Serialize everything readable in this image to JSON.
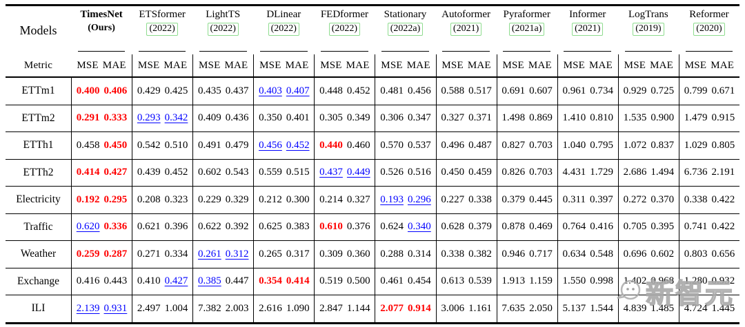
{
  "header": {
    "models_label": "Models",
    "metric_label": "Metric",
    "mse_label": "MSE",
    "mae_label": "MAE",
    "models": [
      {
        "name": "TimesNet",
        "year": "(Ours)",
        "ours": true
      },
      {
        "name": "ETSformer",
        "year": "(2022)",
        "ours": false
      },
      {
        "name": "LightTS",
        "year": "(2022)",
        "ours": false
      },
      {
        "name": "DLinear",
        "year": "(2022)",
        "ours": false
      },
      {
        "name": "FEDformer",
        "year": "(2022)",
        "ours": false
      },
      {
        "name": "Stationary",
        "year": "(2022a)",
        "ours": false
      },
      {
        "name": "Autoformer",
        "year": "(2021)",
        "ours": false
      },
      {
        "name": "Pyraformer",
        "year": "(2021a)",
        "ours": false
      },
      {
        "name": "Informer",
        "year": "(2021)",
        "ours": false
      },
      {
        "name": "LogTrans",
        "year": "(2019)",
        "ours": false
      },
      {
        "name": "Reformer",
        "year": "(2020)",
        "ours": false
      }
    ]
  },
  "styles": {
    "best_color": "#ff0000",
    "second_color": "#0000ff",
    "citation_box_color": "#8edc8e"
  },
  "legend_note": "best=red bold, second=blue underline",
  "table": {
    "rows": [
      {
        "label": "ETTm1",
        "cells": [
          [
            "0.400",
            "best"
          ],
          [
            "0.406",
            "best"
          ],
          [
            "0.429",
            ""
          ],
          [
            "0.425",
            ""
          ],
          [
            "0.435",
            ""
          ],
          [
            "0.437",
            ""
          ],
          [
            "0.403",
            "second"
          ],
          [
            "0.407",
            "second"
          ],
          [
            "0.448",
            ""
          ],
          [
            "0.452",
            ""
          ],
          [
            "0.481",
            ""
          ],
          [
            "0.456",
            ""
          ],
          [
            "0.588",
            ""
          ],
          [
            "0.517",
            ""
          ],
          [
            "0.691",
            ""
          ],
          [
            "0.607",
            ""
          ],
          [
            "0.961",
            ""
          ],
          [
            "0.734",
            ""
          ],
          [
            "0.929",
            ""
          ],
          [
            "0.725",
            ""
          ],
          [
            "0.799",
            ""
          ],
          [
            "0.671",
            ""
          ]
        ]
      },
      {
        "label": "ETTm2",
        "cells": [
          [
            "0.291",
            "best"
          ],
          [
            "0.333",
            "best"
          ],
          [
            "0.293",
            "second"
          ],
          [
            "0.342",
            "second"
          ],
          [
            "0.409",
            ""
          ],
          [
            "0.436",
            ""
          ],
          [
            "0.350",
            ""
          ],
          [
            "0.401",
            ""
          ],
          [
            "0.305",
            ""
          ],
          [
            "0.349",
            ""
          ],
          [
            "0.306",
            ""
          ],
          [
            "0.347",
            ""
          ],
          [
            "0.327",
            ""
          ],
          [
            "0.371",
            ""
          ],
          [
            "1.498",
            ""
          ],
          [
            "0.869",
            ""
          ],
          [
            "1.410",
            ""
          ],
          [
            "0.810",
            ""
          ],
          [
            "1.535",
            ""
          ],
          [
            "0.900",
            ""
          ],
          [
            "1.479",
            ""
          ],
          [
            "0.915",
            ""
          ]
        ]
      },
      {
        "label": "ETTh1",
        "cells": [
          [
            "0.458",
            ""
          ],
          [
            "0.450",
            "best"
          ],
          [
            "0.542",
            ""
          ],
          [
            "0.510",
            ""
          ],
          [
            "0.491",
            ""
          ],
          [
            "0.479",
            ""
          ],
          [
            "0.456",
            "second"
          ],
          [
            "0.452",
            "second"
          ],
          [
            "0.440",
            "best"
          ],
          [
            "0.460",
            ""
          ],
          [
            "0.570",
            ""
          ],
          [
            "0.537",
            ""
          ],
          [
            "0.496",
            ""
          ],
          [
            "0.487",
            ""
          ],
          [
            "0.827",
            ""
          ],
          [
            "0.703",
            ""
          ],
          [
            "1.040",
            ""
          ],
          [
            "0.795",
            ""
          ],
          [
            "1.072",
            ""
          ],
          [
            "0.837",
            ""
          ],
          [
            "1.029",
            ""
          ],
          [
            "0.805",
            ""
          ]
        ]
      },
      {
        "label": "ETTh2",
        "cells": [
          [
            "0.414",
            "best"
          ],
          [
            "0.427",
            "best"
          ],
          [
            "0.439",
            ""
          ],
          [
            "0.452",
            ""
          ],
          [
            "0.602",
            ""
          ],
          [
            "0.543",
            ""
          ],
          [
            "0.559",
            ""
          ],
          [
            "0.515",
            ""
          ],
          [
            "0.437",
            "second"
          ],
          [
            "0.449",
            "second"
          ],
          [
            "0.526",
            ""
          ],
          [
            "0.516",
            ""
          ],
          [
            "0.450",
            ""
          ],
          [
            "0.459",
            ""
          ],
          [
            "0.826",
            ""
          ],
          [
            "0.703",
            ""
          ],
          [
            "4.431",
            ""
          ],
          [
            "1.729",
            ""
          ],
          [
            "2.686",
            ""
          ],
          [
            "1.494",
            ""
          ],
          [
            "6.736",
            ""
          ],
          [
            "2.191",
            ""
          ]
        ]
      },
      {
        "label": "Electricity",
        "cells": [
          [
            "0.192",
            "best"
          ],
          [
            "0.295",
            "best"
          ],
          [
            "0.208",
            ""
          ],
          [
            "0.323",
            ""
          ],
          [
            "0.229",
            ""
          ],
          [
            "0.329",
            ""
          ],
          [
            "0.212",
            ""
          ],
          [
            "0.300",
            ""
          ],
          [
            "0.214",
            ""
          ],
          [
            "0.327",
            ""
          ],
          [
            "0.193",
            "second"
          ],
          [
            "0.296",
            "second"
          ],
          [
            "0.227",
            ""
          ],
          [
            "0.338",
            ""
          ],
          [
            "0.379",
            ""
          ],
          [
            "0.445",
            ""
          ],
          [
            "0.311",
            ""
          ],
          [
            "0.397",
            ""
          ],
          [
            "0.272",
            ""
          ],
          [
            "0.370",
            ""
          ],
          [
            "0.338",
            ""
          ],
          [
            "0.422",
            ""
          ]
        ]
      },
      {
        "label": "Traffic",
        "cells": [
          [
            "0.620",
            "second"
          ],
          [
            "0.336",
            "best"
          ],
          [
            "0.621",
            ""
          ],
          [
            "0.396",
            ""
          ],
          [
            "0.622",
            ""
          ],
          [
            "0.392",
            ""
          ],
          [
            "0.625",
            ""
          ],
          [
            "0.383",
            ""
          ],
          [
            "0.610",
            "best"
          ],
          [
            "0.376",
            ""
          ],
          [
            "0.624",
            ""
          ],
          [
            "0.340",
            "second"
          ],
          [
            "0.628",
            ""
          ],
          [
            "0.379",
            ""
          ],
          [
            "0.878",
            ""
          ],
          [
            "0.469",
            ""
          ],
          [
            "0.764",
            ""
          ],
          [
            "0.416",
            ""
          ],
          [
            "0.705",
            ""
          ],
          [
            "0.395",
            ""
          ],
          [
            "0.741",
            ""
          ],
          [
            "0.422",
            ""
          ]
        ]
      },
      {
        "label": "Weather",
        "cells": [
          [
            "0.259",
            "best"
          ],
          [
            "0.287",
            "best"
          ],
          [
            "0.271",
            ""
          ],
          [
            "0.334",
            ""
          ],
          [
            "0.261",
            "second"
          ],
          [
            "0.312",
            "second"
          ],
          [
            "0.265",
            ""
          ],
          [
            "0.317",
            ""
          ],
          [
            "0.309",
            ""
          ],
          [
            "0.360",
            ""
          ],
          [
            "0.288",
            ""
          ],
          [
            "0.314",
            ""
          ],
          [
            "0.338",
            ""
          ],
          [
            "0.382",
            ""
          ],
          [
            "0.946",
            ""
          ],
          [
            "0.717",
            ""
          ],
          [
            "0.634",
            ""
          ],
          [
            "0.548",
            ""
          ],
          [
            "0.696",
            ""
          ],
          [
            "0.602",
            ""
          ],
          [
            "0.803",
            ""
          ],
          [
            "0.656",
            ""
          ]
        ]
      },
      {
        "label": "Exchange",
        "cells": [
          [
            "0.416",
            ""
          ],
          [
            "0.443",
            ""
          ],
          [
            "0.410",
            ""
          ],
          [
            "0.427",
            "second"
          ],
          [
            "0.385",
            "second"
          ],
          [
            "0.447",
            ""
          ],
          [
            "0.354",
            "best"
          ],
          [
            "0.414",
            "best"
          ],
          [
            "0.519",
            ""
          ],
          [
            "0.500",
            ""
          ],
          [
            "0.461",
            ""
          ],
          [
            "0.454",
            ""
          ],
          [
            "0.613",
            ""
          ],
          [
            "0.539",
            ""
          ],
          [
            "1.913",
            ""
          ],
          [
            "1.159",
            ""
          ],
          [
            "1.550",
            ""
          ],
          [
            "0.998",
            ""
          ],
          [
            "1.402",
            ""
          ],
          [
            "0.968",
            ""
          ],
          [
            "1.280",
            ""
          ],
          [
            "0.932",
            ""
          ]
        ]
      },
      {
        "label": "ILI",
        "cells": [
          [
            "2.139",
            "second"
          ],
          [
            "0.931",
            "second"
          ],
          [
            "2.497",
            ""
          ],
          [
            "1.004",
            ""
          ],
          [
            "7.382",
            ""
          ],
          [
            "2.003",
            ""
          ],
          [
            "2.616",
            ""
          ],
          [
            "1.090",
            ""
          ],
          [
            "2.847",
            ""
          ],
          [
            "1.144",
            ""
          ],
          [
            "2.077",
            "best"
          ],
          [
            "0.914",
            "best"
          ],
          [
            "3.006",
            ""
          ],
          [
            "1.161",
            ""
          ],
          [
            "7.635",
            ""
          ],
          [
            "2.050",
            ""
          ],
          [
            "5.137",
            ""
          ],
          [
            "1.544",
            ""
          ],
          [
            "4.839",
            ""
          ],
          [
            "1.485",
            ""
          ],
          [
            "4.724",
            ""
          ],
          [
            "1.445",
            ""
          ]
        ]
      }
    ]
  },
  "watermark": {
    "text": "新智元",
    "icon": "chat-bubble-face-icon"
  }
}
